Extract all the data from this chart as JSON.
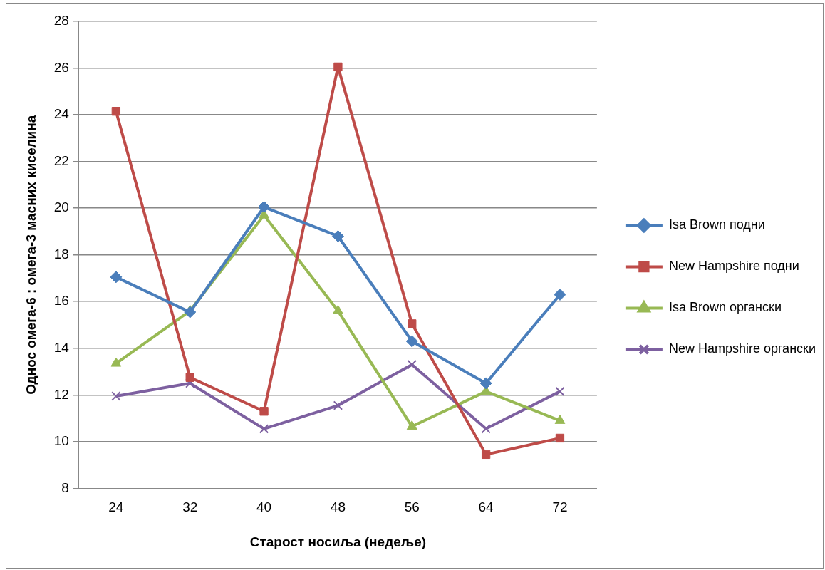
{
  "chart_data": {
    "type": "line",
    "xlabel": "Старост носиља (недеље)",
    "ylabel": "Однос омега-6 : омега-3 масних киселина",
    "categories": [
      "24",
      "32",
      "40",
      "48",
      "56",
      "64",
      "72"
    ],
    "ylim": [
      8,
      28
    ],
    "yticks": [
      8,
      10,
      12,
      14,
      16,
      18,
      20,
      22,
      24,
      26,
      28
    ],
    "grid": "y",
    "legend": "right",
    "series": [
      {
        "name": "Isa Brown подни",
        "color": "#4a7ebb",
        "marker": "diamond",
        "values": [
          17.05,
          15.55,
          20.05,
          18.8,
          14.3,
          12.5,
          16.3
        ]
      },
      {
        "name": "New Hampshire подни",
        "color": "#be4b48",
        "marker": "square",
        "values": [
          24.15,
          12.75,
          11.3,
          26.05,
          15.05,
          9.45,
          10.15
        ]
      },
      {
        "name": "Isa Brown органски",
        "color": "#98b954",
        "marker": "triangle",
        "values": [
          13.35,
          15.6,
          19.7,
          15.6,
          10.65,
          12.15,
          10.9
        ]
      },
      {
        "name": "New Hampshire органски",
        "color": "#7d60a0",
        "marker": "cross",
        "values": [
          11.95,
          12.5,
          10.55,
          11.55,
          13.3,
          10.55,
          12.15
        ]
      }
    ]
  }
}
